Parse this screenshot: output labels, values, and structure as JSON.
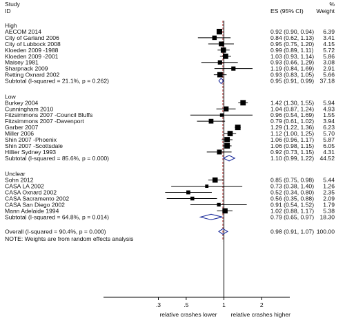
{
  "chart_data": {
    "type": "forest",
    "columns": {
      "study_header_line1": "Study",
      "study_header_line2": "ID",
      "es_header": "ES (95% CI)",
      "weight_header_line1": "%",
      "weight_header_line2": "Weight"
    },
    "x_axis": {
      "scale": "log",
      "ticks": [
        {
          "value": 0.3,
          "label": ".3"
        },
        {
          "value": 0.5,
          "label": ".5"
        },
        {
          "value": 1,
          "label": "1"
        },
        {
          "value": 2,
          "label": "2"
        }
      ],
      "label_left": "relative crashes lower",
      "label_right": "relative crashes higher",
      "range": [
        0.22,
        2.6
      ]
    },
    "overall_es": 0.98,
    "groups": [
      {
        "label": "High",
        "studies": [
          {
            "id": "AECOM 2014",
            "es": 0.92,
            "lo": 0.9,
            "hi": 0.94,
            "weight": 6.39,
            "ci_text": "0.92 (0.90, 0.94)",
            "weight_text": "6.39"
          },
          {
            "id": "City of Garland 2006",
            "es": 0.84,
            "lo": 0.62,
            "hi": 1.13,
            "weight": 3.41,
            "ci_text": "0.84 (0.62, 1.13)",
            "weight_text": "3.41"
          },
          {
            "id": "City of Lubbock 2008",
            "es": 0.95,
            "lo": 0.75,
            "hi": 1.2,
            "weight": 4.15,
            "ci_text": "0.95 (0.75, 1.20)",
            "weight_text": "4.15"
          },
          {
            "id": "Kloeden 2009 -1988",
            "es": 0.99,
            "lo": 0.89,
            "hi": 1.11,
            "weight": 5.72,
            "ci_text": "0.99 (0.89, 1.11)",
            "weight_text": "5.72"
          },
          {
            "id": "Kloeden 2009 -2001",
            "es": 1.03,
            "lo": 0.93,
            "hi": 1.14,
            "weight": 5.86,
            "ci_text": "1.03 (0.93, 1.14)",
            "weight_text": "5.86"
          },
          {
            "id": "Maisey 1981",
            "es": 0.93,
            "lo": 0.66,
            "hi": 1.29,
            "weight": 3.08,
            "ci_text": "0.93 (0.66, 1.29)",
            "weight_text": "3.08"
          },
          {
            "id": "Sharpnack 2009",
            "es": 1.19,
            "lo": 0.84,
            "hi": 1.69,
            "weight": 2.91,
            "ci_text": "1.19 (0.84, 1.69)",
            "weight_text": "2.91"
          },
          {
            "id": "Retting Oxnard 2002",
            "es": 0.93,
            "lo": 0.83,
            "hi": 1.05,
            "weight": 5.66,
            "ci_text": "0.93 (0.83, 1.05)",
            "weight_text": "5.66"
          }
        ],
        "subtotal": {
          "label": "Subtotal  (I-squared = 21.1%, p = 0.262)",
          "es": 0.95,
          "lo": 0.91,
          "hi": 0.99,
          "ci_text": "0.95 (0.91, 0.99)",
          "weight_text": "37.18"
        }
      },
      {
        "label": "Low",
        "studies": [
          {
            "id": "Burkey 2004",
            "es": 1.42,
            "lo": 1.3,
            "hi": 1.55,
            "weight": 5.94,
            "ci_text": "1.42 (1.30, 1.55)",
            "weight_text": "5.94"
          },
          {
            "id": "Cunningham 2010",
            "es": 1.04,
            "lo": 0.87,
            "hi": 1.24,
            "weight": 4.93,
            "ci_text": "1.04 (0.87, 1.24)",
            "weight_text": "4.93"
          },
          {
            "id": "Fitzsimmons 2007 -Council Bluffs",
            "es": 0.96,
            "lo": 0.54,
            "hi": 1.69,
            "weight": 1.55,
            "ci_text": "0.96 (0.54, 1.69)",
            "weight_text": "1.55"
          },
          {
            "id": "Fitzsimmons 2007 -Davenport",
            "es": 0.79,
            "lo": 0.61,
            "hi": 1.02,
            "weight": 3.94,
            "ci_text": "0.79 (0.61, 1.02)",
            "weight_text": "3.94"
          },
          {
            "id": "Garber 2007",
            "es": 1.29,
            "lo": 1.22,
            "hi": 1.36,
            "weight": 6.23,
            "ci_text": "1.29 (1.22, 1.36)",
            "weight_text": "6.23"
          },
          {
            "id": "Miller 2006",
            "es": 1.12,
            "lo": 1.0,
            "hi": 1.25,
            "weight": 5.7,
            "ci_text": "1.12 (1.00, 1.25)",
            "weight_text": "5.70"
          },
          {
            "id": "Shin 2007 -Phoenix",
            "es": 1.06,
            "lo": 0.96,
            "hi": 1.17,
            "weight": 5.87,
            "ci_text": "1.06 (0.96, 1.17)",
            "weight_text": "5.87"
          },
          {
            "id": "Shin 2007 -Scottsdale",
            "es": 1.06,
            "lo": 0.98,
            "hi": 1.15,
            "weight": 6.05,
            "ci_text": "1.06 (0.98, 1.15)",
            "weight_text": "6.05"
          },
          {
            "id": "Hillier Sydney 1993",
            "es": 0.92,
            "lo": 0.73,
            "hi": 1.15,
            "weight": 4.31,
            "ci_text": "0.92 (0.73, 1.15)",
            "weight_text": "4.31"
          }
        ],
        "subtotal": {
          "label": "Subtotal  (I-squared = 85.6%, p = 0.000)",
          "es": 1.1,
          "lo": 0.99,
          "hi": 1.22,
          "ci_text": "1.10 (0.99, 1.22)",
          "weight_text": "44.52"
        }
      },
      {
        "label": "Unclear",
        "studies": [
          {
            "id": "Sohn 2012",
            "es": 0.85,
            "lo": 0.75,
            "hi": 0.98,
            "weight": 5.44,
            "ci_text": "0.85 (0.75, 0.98)",
            "weight_text": "5.44"
          },
          {
            "id": "CASA LA 2002",
            "es": 0.73,
            "lo": 0.38,
            "hi": 1.4,
            "weight": 1.26,
            "ci_text": "0.73 (0.38, 1.40)",
            "weight_text": "1.26"
          },
          {
            "id": "CASA Oxnard 2002",
            "es": 0.52,
            "lo": 0.34,
            "hi": 0.8,
            "weight": 2.35,
            "ci_text": "0.52 (0.34, 0.80)",
            "weight_text": "2.35"
          },
          {
            "id": "CASA Sacramento 2002",
            "es": 0.56,
            "lo": 0.35,
            "hi": 0.88,
            "weight": 2.09,
            "ci_text": "0.56 (0.35, 0.88)",
            "weight_text": "2.09"
          },
          {
            "id": "CASA San Diego 2002",
            "es": 0.91,
            "lo": 0.54,
            "hi": 1.52,
            "weight": 1.79,
            "ci_text": "0.91 (0.54, 1.52)",
            "weight_text": "1.79"
          },
          {
            "id": "Mann Adelaide 1994",
            "es": 1.02,
            "lo": 0.88,
            "hi": 1.17,
            "weight": 5.38,
            "ci_text": "1.02 (0.88, 1.17)",
            "weight_text": "5.38"
          }
        ],
        "subtotal": {
          "label": "Subtotal  (I-squared = 64.8%, p = 0.014)",
          "es": 0.79,
          "lo": 0.65,
          "hi": 0.97,
          "ci_text": "0.79 (0.65, 0.97)",
          "weight_text": "18.30"
        }
      }
    ],
    "overall": {
      "label": "Overall  (I-squared = 90.4%, p = 0.000)",
      "es": 0.98,
      "lo": 0.91,
      "hi": 1.07,
      "ci_text": "0.98 (0.91, 1.07)",
      "weight_text": "100.00"
    },
    "note": "NOTE: Weights are from random effects analysis",
    "colors": {
      "diamond": "#1f2f9c",
      "overall_line": "#b33333",
      "marker": "#000000",
      "text": "#111111"
    }
  }
}
